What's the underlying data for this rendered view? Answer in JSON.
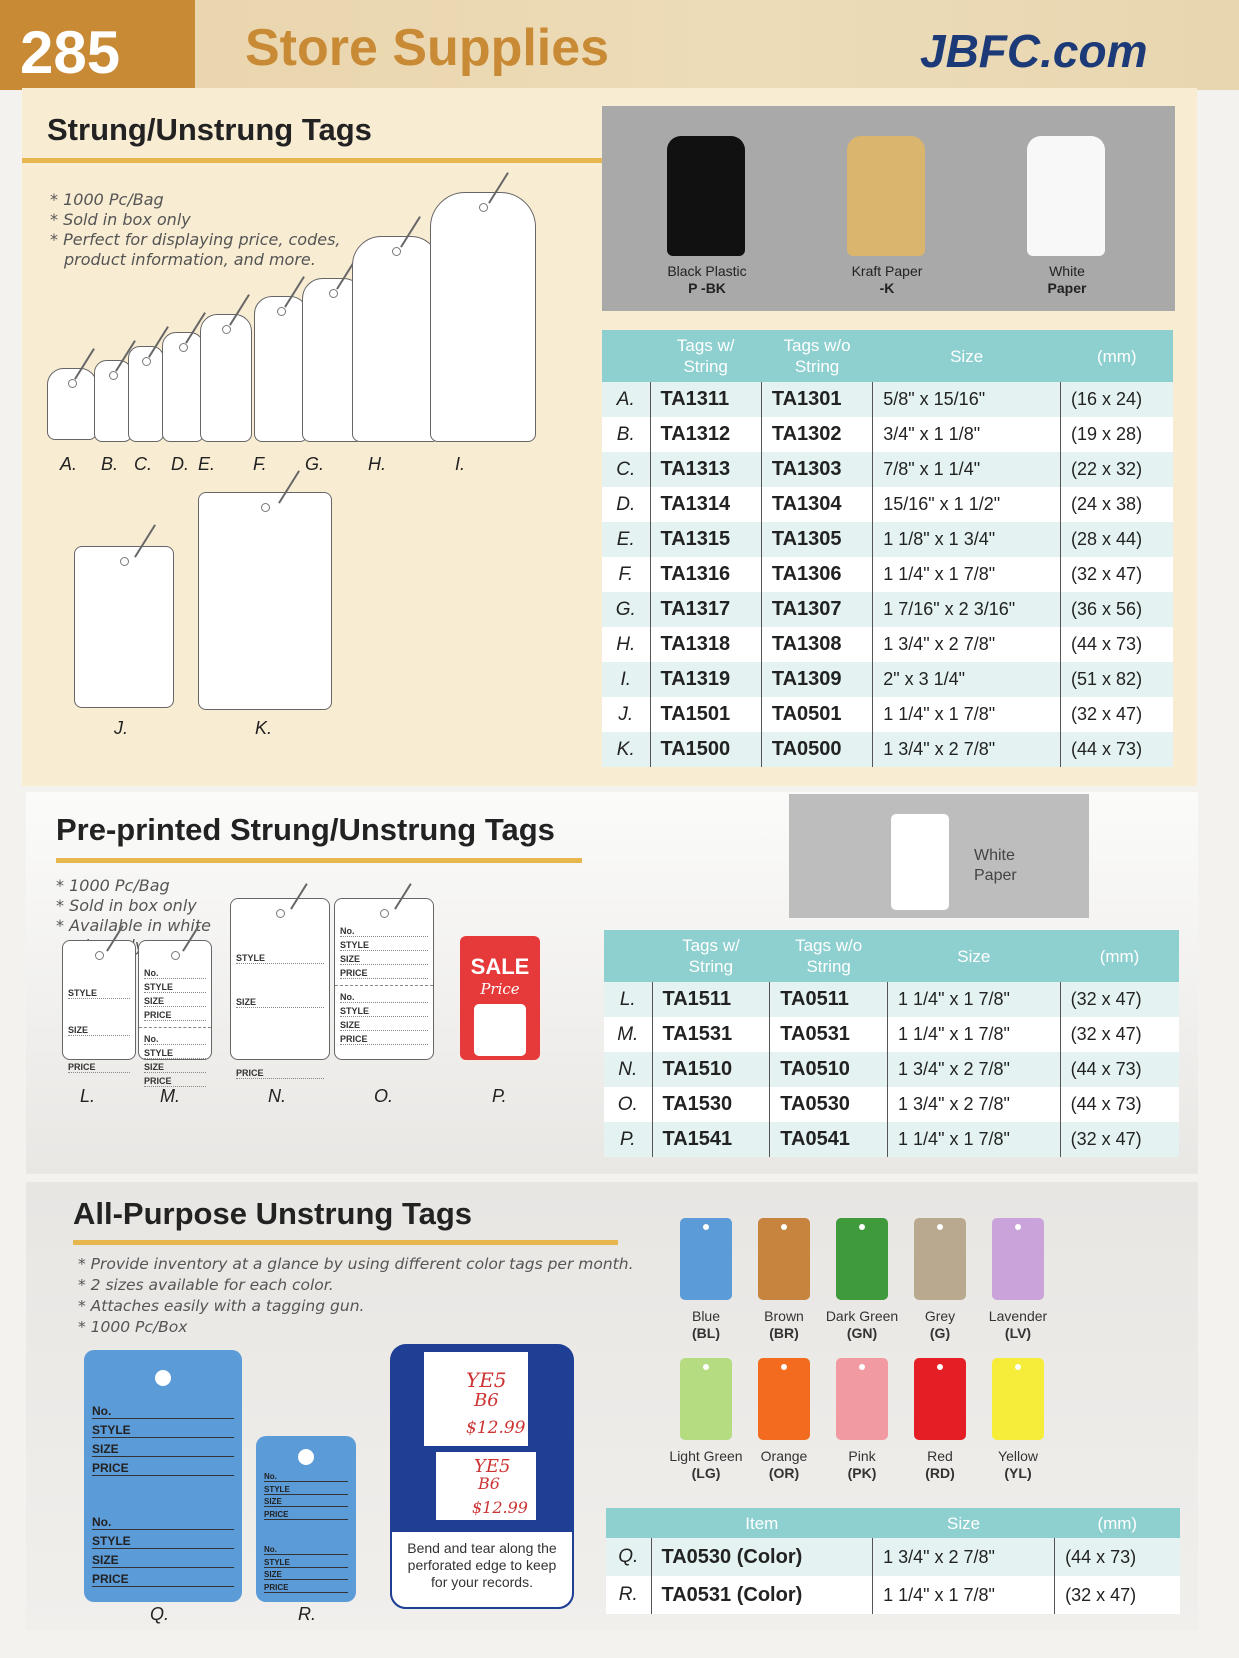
{
  "header": {
    "page_number": "285",
    "title": "Store Supplies",
    "site": "JBFC.com"
  },
  "s1": {
    "title": "Strung/Unstrung Tags",
    "notes": [
      "* 1000 Pc/Bag",
      "* Sold in box only",
      "* Perfect for displaying price, codes,",
      "product information, and more."
    ],
    "tag_labels": [
      "A.",
      "B.",
      "C.",
      "D.",
      "E.",
      "F.",
      "G.",
      "H.",
      "I.",
      "J.",
      "K."
    ],
    "swatches": [
      {
        "name": "Black Plastic",
        "code": "P -BK",
        "color": "#111111"
      },
      {
        "name": "Kraft Paper",
        "code": "-K",
        "color": "#d9b56e"
      },
      {
        "name": "White",
        "code": "Paper",
        "color": "#f8f8f8"
      }
    ],
    "table": {
      "headers": [
        "",
        "Tags w/",
        "String",
        "Tags w/o",
        "String",
        "Size",
        "(mm)"
      ],
      "rows": [
        [
          "A.",
          "TA1311",
          "TA1301",
          "5/8\" x 15/16\"",
          "(16 x 24)"
        ],
        [
          "B.",
          "TA1312",
          "TA1302",
          "3/4\" x 1 1/8\"",
          "(19 x 28)"
        ],
        [
          "C.",
          "TA1313",
          "TA1303",
          "7/8\" x 1 1/4\"",
          "(22 x 32)"
        ],
        [
          "D.",
          "TA1314",
          "TA1304",
          "15/16\" x 1 1/2\"",
          "(24 x 38)"
        ],
        [
          "E.",
          "TA1315",
          "TA1305",
          "1 1/8\" x 1 3/4\"",
          "(28 x 44)"
        ],
        [
          "F.",
          "TA1316",
          "TA1306",
          "1 1/4\" x 1 7/8\"",
          "(32 x 47)"
        ],
        [
          "G.",
          "TA1317",
          "TA1307",
          "1 7/16\" x 2 3/16\"",
          "(36 x 56)"
        ],
        [
          "H.",
          "TA1318",
          "TA1308",
          "1 3/4\" x 2 7/8\"",
          "(44 x 73)"
        ],
        [
          "I.",
          "TA1319",
          "TA1309",
          "2\" x 3 1/4\"",
          "(51 x 82)"
        ],
        [
          "J.",
          "TA1501",
          "TA0501",
          "1 1/4\" x 1 7/8\"",
          "(32 x 47)"
        ],
        [
          "K.",
          "TA1500",
          "TA0500",
          "1 3/4\" x 2 7/8\"",
          "(44 x 73)"
        ]
      ]
    }
  },
  "s2": {
    "title": "Pre-printed Strung/Unstrung Tags",
    "notes": [
      "* 1000 Pc/Bag",
      "* Sold in box only",
      "* Available in white",
      "color only"
    ],
    "swatch": {
      "name": "White",
      "code": "Paper"
    },
    "fields": {
      "no": "No.",
      "style": "STYLE",
      "size": "SIZE",
      "price": "PRICE"
    },
    "sale": {
      "word": "SALE",
      "sub": "Price",
      "color": "#e63a3a"
    },
    "tag_labels": [
      "L.",
      "M.",
      "N.",
      "O.",
      "P."
    ],
    "table": {
      "headers": [
        "",
        "Tags w/",
        "String",
        "Tags w/o",
        "String",
        "Size",
        "(mm)"
      ],
      "rows": [
        [
          "L.",
          "TA1511",
          "TA0511",
          "1 1/4\" x 1 7/8\"",
          "(32 x 47)"
        ],
        [
          "M.",
          "TA1531",
          "TA0531",
          "1 1/4\" x 1 7/8\"",
          "(32 x 47)"
        ],
        [
          "N.",
          "TA1510",
          "TA0510",
          "1 3/4\" x 2 7/8\"",
          "(44 x 73)"
        ],
        [
          "O.",
          "TA1530",
          "TA0530",
          "1 3/4\" x 2 7/8\"",
          "(44 x 73)"
        ],
        [
          "P.",
          "TA1541",
          "TA0541",
          "1 1/4\" x 1 7/8\"",
          "(32 x 47)"
        ]
      ]
    }
  },
  "s3": {
    "title": "All-Purpose Unstrung Tags",
    "notes": [
      "* Provide inventory at a glance by using different color tags per month.",
      "* 2 sizes available for each color.",
      "* Attaches easily with a tagging gun.",
      "* 1000 Pc/Box"
    ],
    "colors": [
      {
        "name": "Blue",
        "code": "(BL)",
        "hex": "#5b9bd8"
      },
      {
        "name": "Brown",
        "code": "(BR)",
        "hex": "#c7843f"
      },
      {
        "name": "Dark Green",
        "code": "(GN)",
        "hex": "#3e9a3a"
      },
      {
        "name": "Grey",
        "code": "(G)",
        "hex": "#b8a98f"
      },
      {
        "name": "Lavender",
        "code": "(LV)",
        "hex": "#c9a3d9"
      },
      {
        "name": "Light Green",
        "code": "(LG)",
        "hex": "#b6dc82"
      },
      {
        "name": "Orange",
        "code": "(OR)",
        "hex": "#f36b1e"
      },
      {
        "name": "Pink",
        "code": "(PK)",
        "hex": "#f29aa2"
      },
      {
        "name": "Red",
        "code": "(RD)",
        "hex": "#e51e25"
      },
      {
        "name": "Yellow",
        "code": "(YL)",
        "hex": "#f6ec3a"
      }
    ],
    "tag_labels": [
      "Q.",
      "R."
    ],
    "handwritten": {
      "no": "YE5",
      "style": "B6",
      "price": "$12.99"
    },
    "perforation_note": "Bend and tear along the perforated edge to keep for your records.",
    "table": {
      "headers": [
        "",
        "Item",
        "Size",
        "(mm)"
      ],
      "rows": [
        [
          "Q.",
          "TA0530 (Color)",
          "1 3/4\" x 2 7/8\"",
          "(44 x 73)"
        ],
        [
          "R.",
          "TA0531 (Color)",
          "1 1/4\" x 1 7/8\"",
          "(32 x 47)"
        ]
      ]
    }
  }
}
